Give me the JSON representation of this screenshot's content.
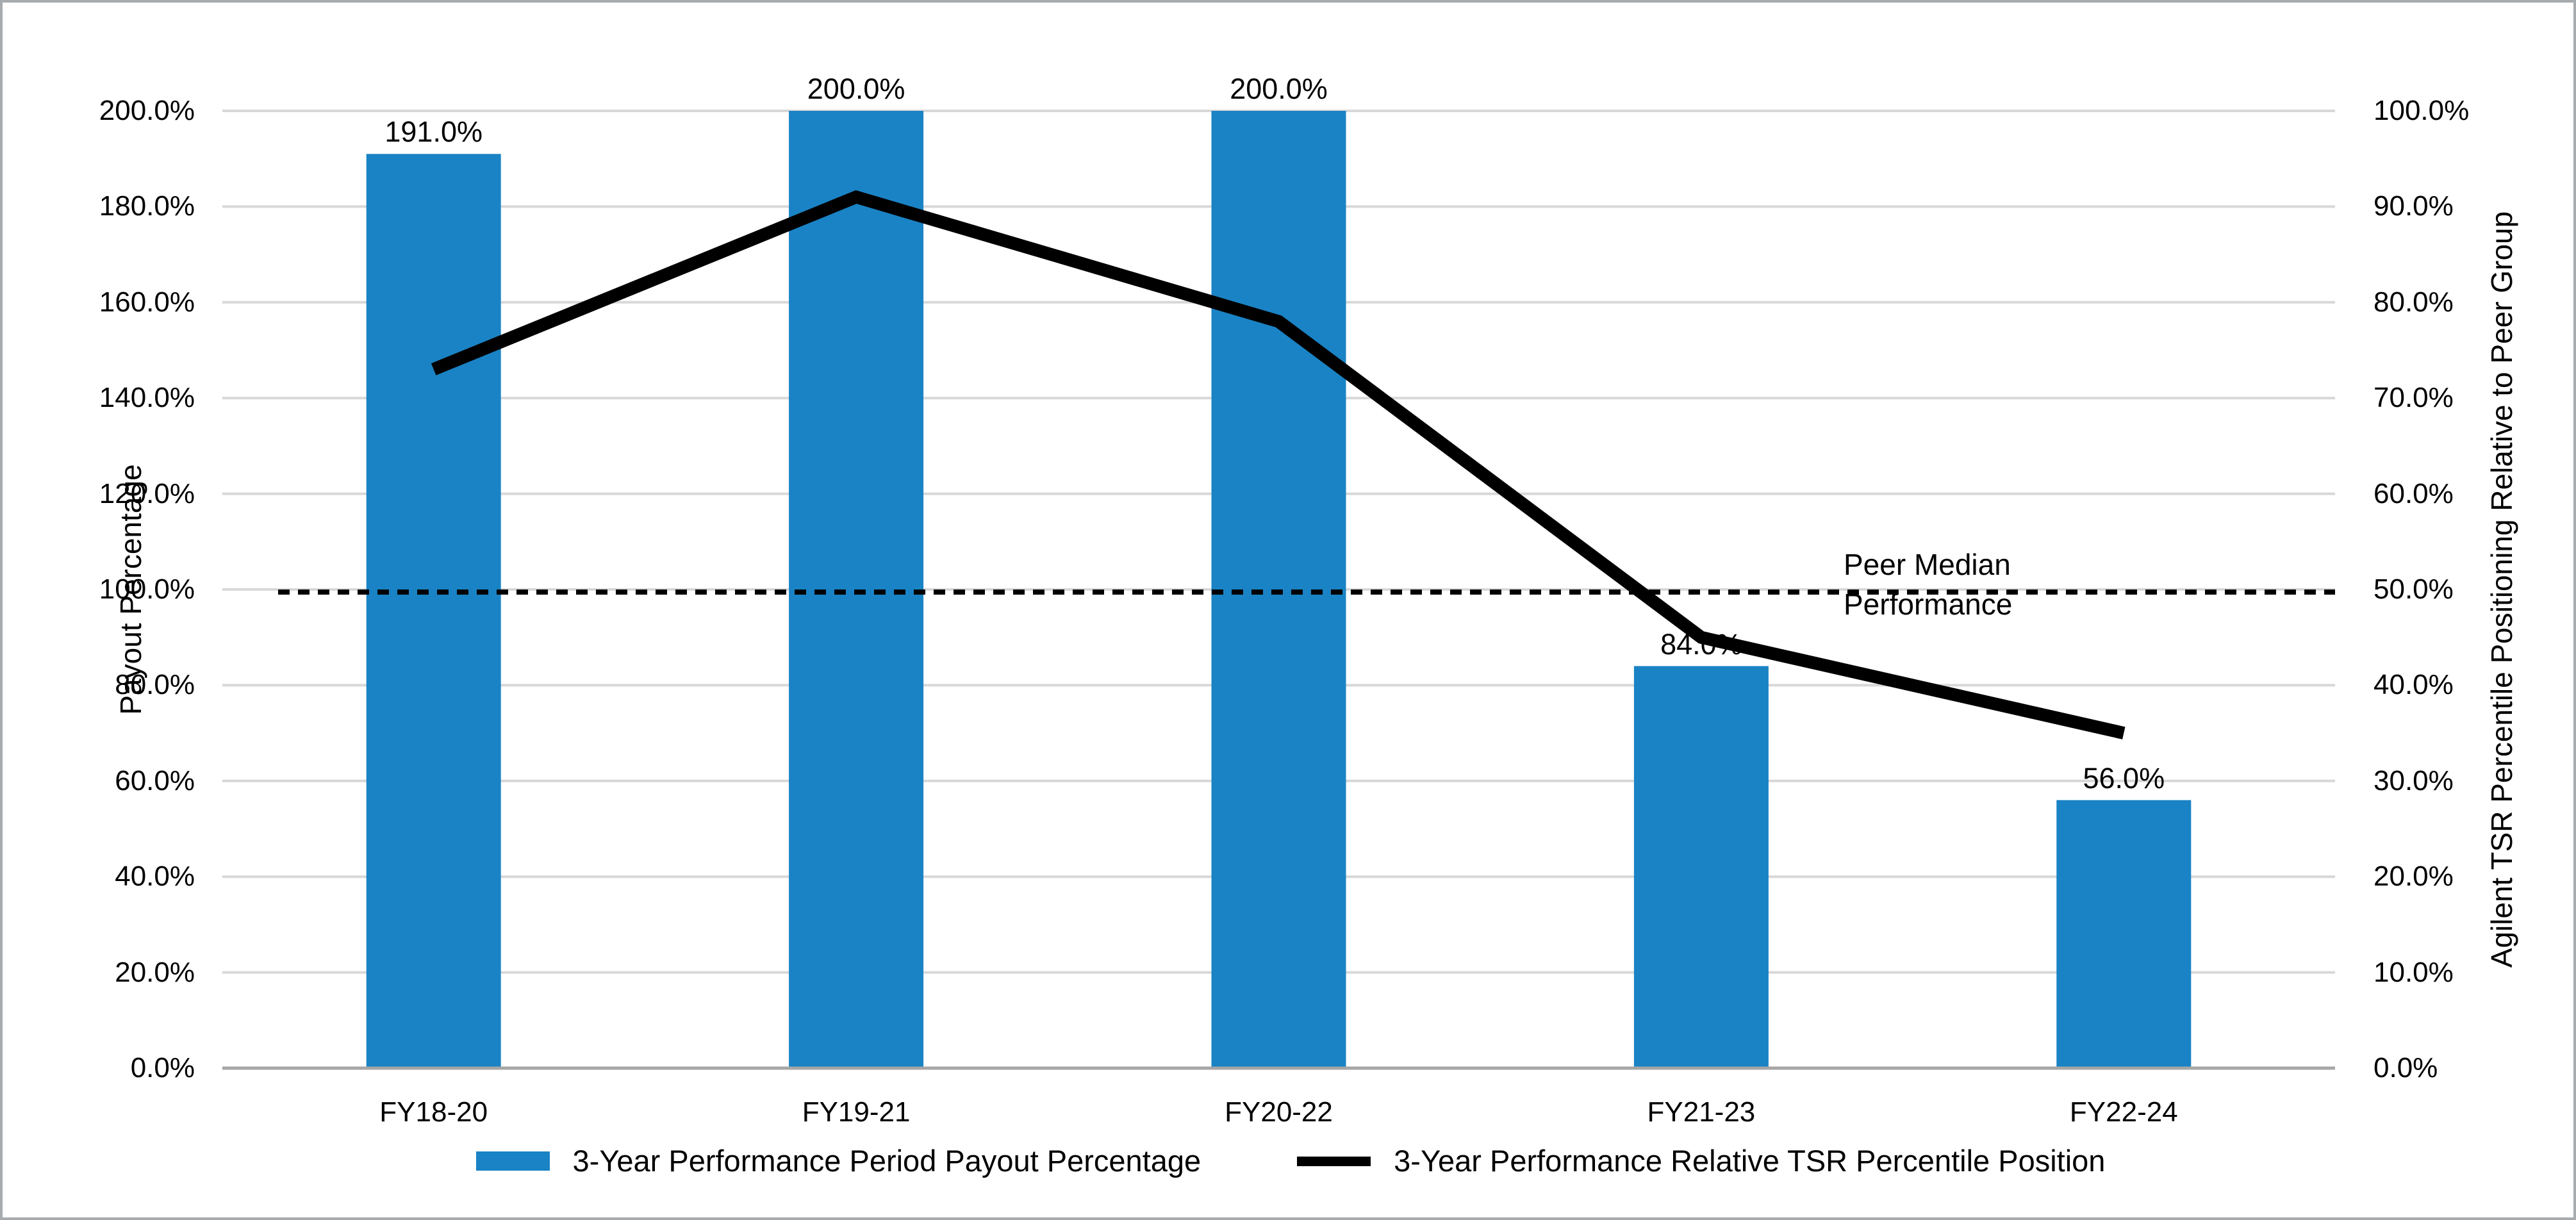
{
  "chart_data": {
    "type": "combo",
    "title": "",
    "categories": [
      "FY18-20",
      "FY19-21",
      "FY20-22",
      "FY21-23",
      "FY22-24"
    ],
    "series": [
      {
        "name": "3-Year Performance Period Payout Percentage",
        "type": "bar",
        "axis": "left",
        "values": [
          191.0,
          200.0,
          200.0,
          84.0,
          56.0
        ],
        "labels": [
          "191.0%",
          "200.0%",
          "200.0%",
          "84.0%",
          "56.0%"
        ],
        "color": "#1a83c5"
      },
      {
        "name": "3-Year Performance Relative TSR Percentile Position",
        "type": "line",
        "axis": "right",
        "values": [
          73.0,
          91.0,
          78.0,
          45.0,
          35.0
        ],
        "color": "#000000"
      }
    ],
    "reference_line": {
      "label": "Peer Median Performance",
      "label_lines": [
        "Peer Median",
        "Performance"
      ],
      "right_axis_value": 50.0,
      "left_axis_value": 100.0,
      "style": "dashed",
      "color": "#000000"
    },
    "left_axis": {
      "title": "Payout Percentage",
      "min": 0,
      "max": 200,
      "ticks": [
        "0.0%",
        "20.0%",
        "40.0%",
        "60.0%",
        "80.0%",
        "100.0%",
        "120.0%",
        "140.0%",
        "160.0%",
        "180.0%",
        "200.0%"
      ]
    },
    "right_axis": {
      "title": "Agilent TSR Percentile Positioning Relative to Peer Group",
      "min": 0,
      "max": 100,
      "ticks": [
        "0.0%",
        "10.0%",
        "20.0%",
        "30.0%",
        "40.0%",
        "50.0%",
        "60.0%",
        "70.0%",
        "80.0%",
        "90.0%",
        "100.0%"
      ]
    },
    "grid": true,
    "legend_position": "bottom",
    "colors": {
      "gridline": "#d8d8d8",
      "axis_line": "#a6a6a6",
      "background": "#ffffff"
    }
  }
}
